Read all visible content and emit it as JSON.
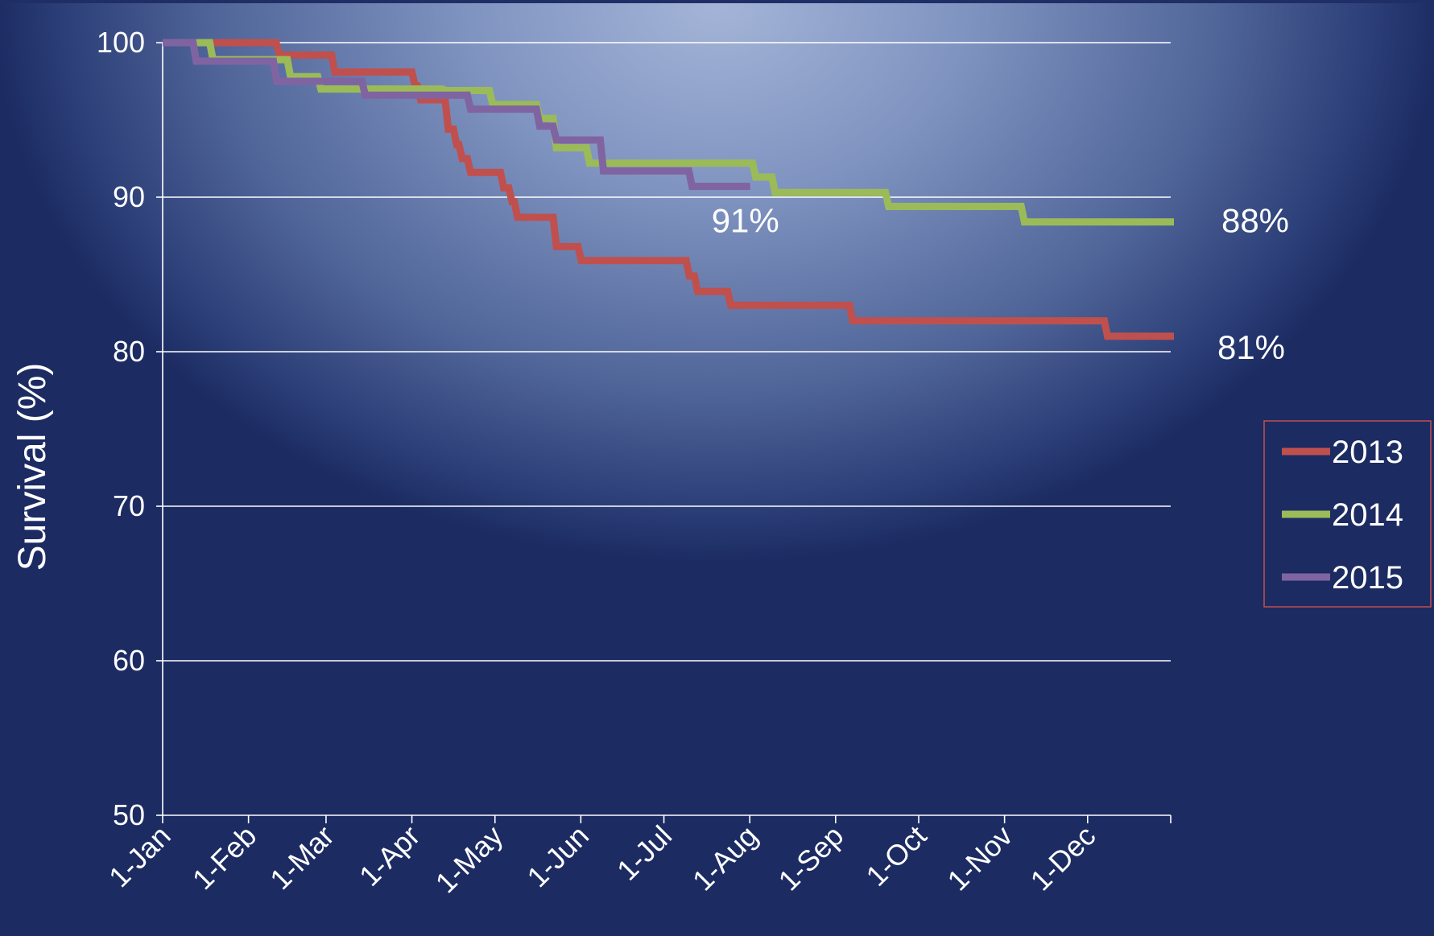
{
  "chart_data": {
    "type": "line",
    "title": "",
    "xlabel": "",
    "ylabel": "Survival (%)",
    "ylim": [
      50,
      100
    ],
    "yticks": [
      "50",
      "60",
      "70",
      "80",
      "90",
      "100"
    ],
    "xticks": [
      "1-Jan",
      "1-Feb",
      "1-Mar",
      "1-Apr",
      "1-May",
      "1-Jun",
      "1-Jul",
      "1-Aug",
      "1-Sep",
      "1-Oct",
      "1-Nov",
      "1-Dec"
    ],
    "grid": true,
    "legend": "right",
    "series": [
      {
        "name": "2013",
        "color": "#c0504d",
        "points": [
          [
            "1-Jan",
            100
          ],
          [
            "11-Feb",
            99.2
          ],
          [
            "3-Mar",
            98.1
          ],
          [
            "1-Apr",
            97.2
          ],
          [
            "3-Apr",
            96.3
          ],
          [
            "13-Apr",
            94.4
          ],
          [
            "16-Apr",
            93.4
          ],
          [
            "18-Apr",
            92.5
          ],
          [
            "21-Apr",
            91.6
          ],
          [
            "3-May",
            90.6
          ],
          [
            "6-May",
            89.7
          ],
          [
            "8-May",
            88.7
          ],
          [
            "22-May",
            86.8
          ],
          [
            "31-May",
            85.9
          ],
          [
            "9-Jul",
            84.9
          ],
          [
            "12-Jul",
            83.9
          ],
          [
            "24-Jul",
            83.0
          ],
          [
            "6-Sep",
            82.0
          ],
          [
            "7-Dec",
            81.0
          ],
          [
            "31-Dec",
            81.0
          ]
        ]
      },
      {
        "name": "2014",
        "color": "#9bbb59",
        "points": [
          [
            "1-Jan",
            100
          ],
          [
            "18-Jan",
            98.9
          ],
          [
            "15-Feb",
            97.8
          ],
          [
            "26-Feb",
            97.0
          ],
          [
            "12-Apr",
            96.9
          ],
          [
            "29-Apr",
            96.0
          ],
          [
            "16-May",
            95.1
          ],
          [
            "22-May",
            93.2
          ],
          [
            "3-Jun",
            92.2
          ],
          [
            "2-Aug",
            91.3
          ],
          [
            "9-Aug",
            90.3
          ],
          [
            "19-Sep",
            89.4
          ],
          [
            "7-Nov",
            88.4
          ],
          [
            "31-Dec",
            88.4
          ]
        ]
      },
      {
        "name": "2015",
        "color": "#8064a2",
        "points": [
          [
            "1-Jan",
            100
          ],
          [
            "12-Jan",
            98.8
          ],
          [
            "10-Feb",
            97.5
          ],
          [
            "14-Mar",
            96.6
          ],
          [
            "21-Apr",
            95.7
          ],
          [
            "16-May",
            94.6
          ],
          [
            "22-May",
            93.7
          ],
          [
            "8-Jun",
            91.7
          ],
          [
            "10-Jul",
            90.7
          ],
          [
            "31-Jul",
            90.7
          ]
        ]
      }
    ],
    "annotations": [
      {
        "text": "91%",
        "series": "2015"
      },
      {
        "text": "88%",
        "series": "2014"
      },
      {
        "text": "81%",
        "series": "2013"
      }
    ]
  }
}
